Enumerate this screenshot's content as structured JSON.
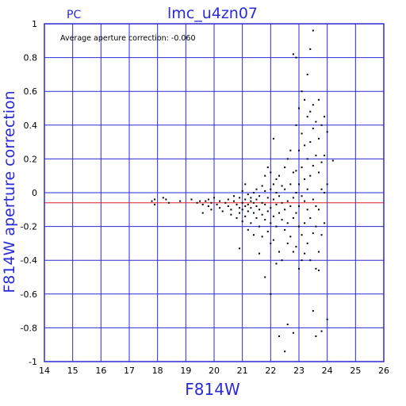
{
  "chart_data": {
    "type": "scatter",
    "title": "lmc_u4zn07",
    "corner_label": "PC",
    "annotation": "Average aperture correction: -0.060",
    "xlabel": "F814W",
    "ylabel": "F814W aperture correction",
    "xlim": [
      14,
      26
    ],
    "ylim": [
      -1,
      1
    ],
    "x_ticks": [
      "14",
      "15",
      "16",
      "17",
      "18",
      "19",
      "20",
      "21",
      "22",
      "23",
      "24",
      "25",
      "26"
    ],
    "y_ticks": [
      "-1",
      "-0.8",
      "-0.6",
      "-0.4",
      "-0.2",
      "0",
      "0.2",
      "0.4",
      "0.6",
      "0.8",
      "1"
    ],
    "grid": true,
    "average_line": -0.06,
    "colors": {
      "grid": "#2a2ad6",
      "average_line": "#e02020",
      "points": "#000000",
      "text": "#2a2ad6"
    },
    "points": [
      [
        17.8,
        -0.05
      ],
      [
        17.9,
        -0.04
      ],
      [
        17.9,
        -0.07
      ],
      [
        18.2,
        -0.03
      ],
      [
        18.3,
        -0.04
      ],
      [
        18.4,
        -0.06
      ],
      [
        18.8,
        -0.05
      ],
      [
        19.2,
        -0.04
      ],
      [
        19.4,
        -0.06
      ],
      [
        19.5,
        -0.05
      ],
      [
        19.6,
        -0.07
      ],
      [
        19.7,
        -0.05
      ],
      [
        19.8,
        -0.04
      ],
      [
        19.9,
        -0.06
      ],
      [
        19.9,
        -0.1
      ],
      [
        19.6,
        -0.12
      ],
      [
        19.8,
        -0.08
      ],
      [
        20.0,
        -0.03
      ],
      [
        20.1,
        -0.07
      ],
      [
        20.2,
        -0.05
      ],
      [
        20.2,
        -0.09
      ],
      [
        20.3,
        -0.11
      ],
      [
        20.4,
        -0.06
      ],
      [
        20.5,
        -0.04
      ],
      [
        20.5,
        -0.08
      ],
      [
        20.6,
        -0.1
      ],
      [
        20.6,
        -0.13
      ],
      [
        20.7,
        -0.05
      ],
      [
        20.7,
        -0.02
      ],
      [
        20.8,
        -0.07
      ],
      [
        20.8,
        -0.15
      ],
      [
        20.9,
        -0.03
      ],
      [
        20.9,
        -0.09
      ],
      [
        20.9,
        -0.12
      ],
      [
        20.9,
        -0.33
      ],
      [
        21.0,
        0.01
      ],
      [
        21.0,
        -0.06
      ],
      [
        21.0,
        -0.1
      ],
      [
        21.0,
        -0.17
      ],
      [
        21.1,
        0.05
      ],
      [
        21.1,
        -0.04
      ],
      [
        21.1,
        -0.08
      ],
      [
        21.1,
        -0.14
      ],
      [
        21.2,
        -0.01
      ],
      [
        21.2,
        -0.07
      ],
      [
        21.2,
        -0.11
      ],
      [
        21.2,
        -0.22
      ],
      [
        21.3,
        -0.03
      ],
      [
        21.3,
        -0.05
      ],
      [
        21.3,
        -0.09
      ],
      [
        21.3,
        -0.18
      ],
      [
        21.4,
        0.0
      ],
      [
        21.4,
        -0.06
      ],
      [
        21.4,
        -0.12
      ],
      [
        21.4,
        -0.25
      ],
      [
        21.5,
        0.02
      ],
      [
        21.5,
        -0.04
      ],
      [
        21.5,
        -0.08
      ],
      [
        21.5,
        -0.15
      ],
      [
        21.6,
        -0.02
      ],
      [
        21.6,
        -0.1
      ],
      [
        21.6,
        -0.2
      ],
      [
        21.6,
        -0.36
      ],
      [
        21.7,
        0.04
      ],
      [
        21.7,
        -0.06
      ],
      [
        21.7,
        -0.13
      ],
      [
        21.7,
        -0.26
      ],
      [
        21.8,
        0.1
      ],
      [
        21.8,
        0.01
      ],
      [
        21.8,
        -0.07
      ],
      [
        21.8,
        -0.16
      ],
      [
        21.8,
        -0.5
      ],
      [
        21.9,
        0.15
      ],
      [
        21.9,
        -0.03
      ],
      [
        21.9,
        -0.11
      ],
      [
        21.9,
        -0.23
      ],
      [
        22.0,
        0.12
      ],
      [
        22.0,
        0.02
      ],
      [
        22.0,
        -0.09
      ],
      [
        22.0,
        -0.18
      ],
      [
        22.0,
        -0.3
      ],
      [
        22.0,
        -0.6
      ],
      [
        22.1,
        0.32
      ],
      [
        22.1,
        0.05
      ],
      [
        22.1,
        -0.04
      ],
      [
        22.1,
        -0.14
      ],
      [
        22.1,
        -0.28
      ],
      [
        22.2,
        0.08
      ],
      [
        22.2,
        0.0
      ],
      [
        22.2,
        -0.07
      ],
      [
        22.2,
        -0.2
      ],
      [
        22.2,
        -0.42
      ],
      [
        22.3,
        0.1
      ],
      [
        22.3,
        -0.02
      ],
      [
        22.3,
        -0.12
      ],
      [
        22.3,
        -0.35
      ],
      [
        22.3,
        -0.85
      ],
      [
        22.4,
        0.04
      ],
      [
        22.4,
        -0.06
      ],
      [
        22.4,
        -0.16
      ],
      [
        22.4,
        -0.4
      ],
      [
        22.5,
        0.15
      ],
      [
        22.5,
        0.02
      ],
      [
        22.5,
        -0.1
      ],
      [
        22.5,
        -0.22
      ],
      [
        22.5,
        -0.94
      ],
      [
        22.6,
        0.2
      ],
      [
        22.6,
        -0.05
      ],
      [
        22.6,
        -0.18
      ],
      [
        22.6,
        -0.3
      ],
      [
        22.6,
        -0.78
      ],
      [
        22.7,
        0.25
      ],
      [
        22.7,
        0.05
      ],
      [
        22.7,
        -0.08
      ],
      [
        22.7,
        -0.26
      ],
      [
        22.8,
        0.82
      ],
      [
        22.8,
        0.12
      ],
      [
        22.8,
        -0.03
      ],
      [
        22.8,
        -0.15
      ],
      [
        22.8,
        -0.35
      ],
      [
        22.8,
        -0.83
      ],
      [
        22.9,
        0.8
      ],
      [
        22.9,
        0.4
      ],
      [
        22.9,
        0.13
      ],
      [
        22.9,
        0.0
      ],
      [
        22.9,
        -0.12
      ],
      [
        22.9,
        -0.32
      ],
      [
        23.0,
        0.5
      ],
      [
        23.0,
        0.25
      ],
      [
        23.0,
        0.05
      ],
      [
        23.0,
        -0.08
      ],
      [
        23.0,
        -0.2
      ],
      [
        23.0,
        -0.45
      ],
      [
        23.1,
        0.6
      ],
      [
        23.1,
        0.35
      ],
      [
        23.1,
        0.15
      ],
      [
        23.1,
        -0.02
      ],
      [
        23.1,
        -0.25
      ],
      [
        23.1,
        -0.4
      ],
      [
        23.2,
        0.55
      ],
      [
        23.2,
        0.28
      ],
      [
        23.2,
        0.08
      ],
      [
        23.2,
        -0.05
      ],
      [
        23.2,
        -0.18
      ],
      [
        23.2,
        -0.36
      ],
      [
        23.3,
        0.7
      ],
      [
        23.3,
        0.45
      ],
      [
        23.3,
        0.2
      ],
      [
        23.3,
        0.02
      ],
      [
        23.3,
        -0.1
      ],
      [
        23.3,
        -0.3
      ],
      [
        23.4,
        0.85
      ],
      [
        23.4,
        0.48
      ],
      [
        23.4,
        0.3
      ],
      [
        23.4,
        0.1
      ],
      [
        23.4,
        -0.15
      ],
      [
        23.4,
        -0.4
      ],
      [
        23.5,
        0.96
      ],
      [
        23.5,
        0.52
      ],
      [
        23.5,
        0.38
      ],
      [
        23.5,
        0.16
      ],
      [
        23.5,
        -0.04
      ],
      [
        23.5,
        -0.24
      ],
      [
        23.5,
        -0.7
      ],
      [
        23.6,
        0.42
      ],
      [
        23.6,
        0.22
      ],
      [
        23.6,
        -0.08
      ],
      [
        23.6,
        -0.2
      ],
      [
        23.6,
        -0.45
      ],
      [
        23.6,
        -0.85
      ],
      [
        23.7,
        0.55
      ],
      [
        23.7,
        0.32
      ],
      [
        23.7,
        0.12
      ],
      [
        23.7,
        -0.1
      ],
      [
        23.7,
        -0.35
      ],
      [
        23.7,
        -0.46
      ],
      [
        23.8,
        0.4
      ],
      [
        23.8,
        0.18
      ],
      [
        23.8,
        0.02
      ],
      [
        23.8,
        -0.25
      ],
      [
        23.8,
        -0.82
      ],
      [
        23.9,
        0.45
      ],
      [
        23.9,
        0.22
      ],
      [
        23.9,
        0.0
      ],
      [
        23.9,
        -0.18
      ],
      [
        24.0,
        0.36
      ],
      [
        24.0,
        0.05
      ],
      [
        24.0,
        -0.75
      ],
      [
        24.2,
        0.19
      ]
    ]
  }
}
